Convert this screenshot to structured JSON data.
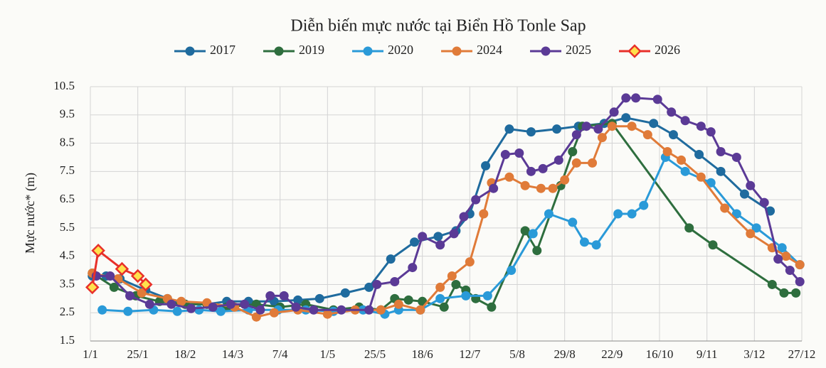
{
  "chart_data": {
    "type": "line",
    "title": "Diễn biến mực nước tại Biển Hồ Tonle Sap",
    "y_label": "Mực nước* (m)",
    "xlim": [
      0,
      360
    ],
    "xticks": [
      {
        "value": 0,
        "label": "1/1"
      },
      {
        "value": 24,
        "label": "25/1"
      },
      {
        "value": 48,
        "label": "18/2"
      },
      {
        "value": 72,
        "label": "14/3"
      },
      {
        "value": 96,
        "label": "7/4"
      },
      {
        "value": 120,
        "label": "1/5"
      },
      {
        "value": 144,
        "label": "25/5"
      },
      {
        "value": 168,
        "label": "18/6"
      },
      {
        "value": 192,
        "label": "12/7"
      },
      {
        "value": 216,
        "label": "5/8"
      },
      {
        "value": 240,
        "label": "29/8"
      },
      {
        "value": 264,
        "label": "22/9"
      },
      {
        "value": 288,
        "label": "16/10"
      },
      {
        "value": 312,
        "label": "9/11"
      },
      {
        "value": 336,
        "label": "3/12"
      },
      {
        "value": 360,
        "label": "27/12"
      }
    ],
    "ylim": [
      1.5,
      10.5
    ],
    "yticks": [
      1.5,
      2.5,
      3.5,
      4.5,
      5.5,
      6.5,
      7.5,
      8.5,
      9.5,
      10.5
    ],
    "grid": true,
    "legend": "top",
    "series": [
      {
        "name": "2017",
        "color": "#1f6b9e",
        "marker": "circle",
        "marker_fill": "#1f6b9e",
        "x": [
          1,
          8,
          15,
          28,
          39,
          48,
          59,
          69,
          80,
          93,
          105,
          116,
          129,
          141,
          152,
          164,
          176,
          185,
          192,
          200,
          212,
          223,
          236,
          247,
          260,
          271,
          285,
          295,
          308,
          319,
          331,
          344
        ],
        "values": [
          3.8,
          3.8,
          3.7,
          3.3,
          3.0,
          2.8,
          2.8,
          2.9,
          2.9,
          2.9,
          2.95,
          3.0,
          3.2,
          3.4,
          4.4,
          5.0,
          5.2,
          5.4,
          6.0,
          7.7,
          9.0,
          8.9,
          9.0,
          9.1,
          9.2,
          9.4,
          9.2,
          8.8,
          8.1,
          7.5,
          6.7,
          6.1
        ]
      },
      {
        "name": "2019",
        "color": "#2e6e3e",
        "marker": "circle",
        "marker_fill": "#2e6e3e",
        "x": [
          1,
          12,
          23,
          35,
          48,
          59,
          69,
          84,
          96,
          109,
          123,
          136,
          147,
          154,
          161,
          168,
          179,
          185,
          190,
          195,
          203,
          220,
          226,
          238,
          244,
          249,
          264,
          303,
          315,
          345,
          351,
          357
        ],
        "values": [
          3.9,
          3.4,
          3.1,
          2.9,
          2.8,
          2.8,
          2.7,
          2.8,
          2.7,
          2.8,
          2.6,
          2.7,
          2.6,
          3.0,
          2.95,
          2.9,
          2.7,
          3.5,
          3.3,
          3.0,
          2.7,
          5.4,
          4.7,
          7.0,
          8.2,
          9.1,
          9.2,
          5.5,
          4.9,
          3.5,
          3.2,
          3.2
        ]
      },
      {
        "name": "2020",
        "color": "#2a9ad8",
        "marker": "circle",
        "marker_fill": "#2a9ad8",
        "x": [
          6,
          19,
          32,
          44,
          55,
          66,
          80,
          95,
          109,
          123,
          138,
          149,
          156,
          167,
          177,
          190,
          201,
          213,
          224,
          232,
          244,
          250,
          256,
          267,
          274,
          280,
          291,
          301,
          314,
          327,
          337,
          350,
          359
        ],
        "values": [
          2.6,
          2.55,
          2.6,
          2.55,
          2.6,
          2.55,
          2.6,
          2.6,
          2.6,
          2.55,
          2.6,
          2.45,
          2.6,
          2.6,
          3.0,
          3.1,
          3.1,
          4.0,
          5.3,
          6.0,
          5.7,
          5.0,
          4.9,
          6.0,
          6.0,
          6.3,
          8.0,
          7.5,
          7.1,
          6.0,
          5.5,
          4.8,
          4.2
        ]
      },
      {
        "name": "2024",
        "color": "#e07b39",
        "marker": "circle",
        "marker_fill": "#e07b39",
        "x": [
          1,
          14,
          26,
          39,
          46,
          59,
          73,
          84,
          93,
          105,
          120,
          134,
          147,
          156,
          167,
          177,
          183,
          192,
          199,
          203,
          212,
          220,
          228,
          234,
          240,
          246,
          254,
          259,
          264,
          274,
          282,
          292,
          299,
          309,
          321,
          334,
          345,
          352,
          359
        ],
        "values": [
          3.9,
          3.7,
          3.2,
          3.0,
          2.9,
          2.85,
          2.7,
          2.35,
          2.5,
          2.6,
          2.45,
          2.6,
          2.6,
          2.8,
          2.6,
          3.4,
          3.8,
          4.3,
          6.0,
          7.1,
          7.3,
          7.0,
          6.9,
          6.9,
          7.2,
          7.8,
          7.8,
          8.7,
          9.1,
          9.1,
          8.8,
          8.2,
          7.9,
          7.3,
          6.2,
          5.3,
          4.8,
          4.5,
          4.2
        ]
      },
      {
        "name": "2025",
        "color": "#5b3a96",
        "marker": "circle",
        "marker_fill": "#5b3a96",
        "x": [
          3,
          10,
          20,
          30,
          41,
          51,
          62,
          71,
          78,
          86,
          91,
          98,
          104,
          113,
          127,
          141,
          145,
          154,
          163,
          168,
          177,
          184,
          189,
          195,
          204,
          210,
          217,
          223,
          229,
          237,
          246,
          251,
          257,
          265,
          271,
          276,
          287,
          294,
          301,
          309,
          314,
          319,
          327,
          334,
          341,
          348,
          354,
          359
        ],
        "values": [
          3.8,
          3.8,
          3.1,
          2.8,
          2.8,
          2.65,
          2.7,
          2.8,
          2.8,
          2.6,
          3.1,
          3.1,
          2.7,
          2.6,
          2.6,
          2.6,
          3.5,
          3.6,
          4.1,
          5.2,
          4.9,
          5.3,
          5.9,
          6.5,
          6.9,
          8.1,
          8.15,
          7.5,
          7.6,
          7.9,
          8.8,
          9.1,
          9.0,
          9.6,
          10.1,
          10.1,
          10.05,
          9.6,
          9.3,
          9.1,
          8.9,
          8.2,
          8.0,
          7.0,
          6.4,
          4.4,
          4.0,
          3.6
        ]
      },
      {
        "name": "2026",
        "color": "#e8302a",
        "marker": "diamond",
        "marker_fill": "#ffe14d",
        "x": [
          1,
          4,
          16,
          24,
          28
        ],
        "values": [
          3.4,
          4.7,
          4.05,
          3.8,
          3.5
        ]
      }
    ]
  }
}
